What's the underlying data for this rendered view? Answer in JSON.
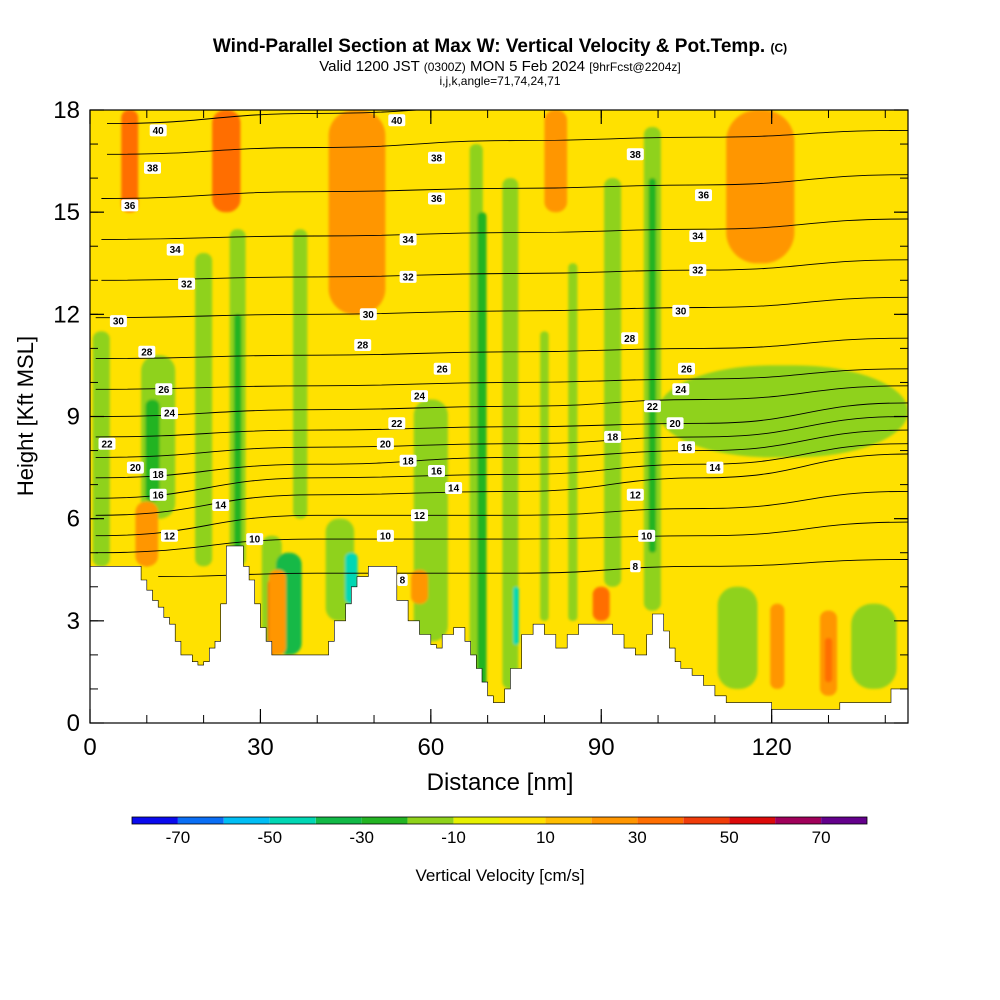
{
  "header": {
    "title_main": "Wind-Parallel Section at Max W: Vertical Velocity & Pot.Temp.",
    "title_mark": "(C)",
    "valid_prefix": "Valid 1200 JST",
    "valid_zulu": "(0300Z)",
    "valid_date": "MON 5 Feb 2024",
    "valid_fcst": "[9hrFcst@2204z]",
    "indices": "i,j,k,angle=71,74,24,71"
  },
  "chart_data": {
    "type": "heatmap",
    "xlabel": "Distance [nm]",
    "ylabel": "Height [Kft MSL]",
    "xlim": [
      0,
      144
    ],
    "ylim": [
      0,
      18
    ],
    "x_ticks": [
      0,
      30,
      60,
      90,
      120
    ],
    "y_ticks": [
      0,
      3,
      6,
      9,
      12,
      15,
      18
    ],
    "colorbar": {
      "label": "Vertical Velocity [cm/s]",
      "tick_labels": [
        "-70",
        "-50",
        "-30",
        "-10",
        "10",
        "30",
        "50",
        "70"
      ],
      "tick_values": [
        -70,
        -50,
        -30,
        -10,
        10,
        30,
        50,
        70
      ],
      "bins": [
        -80,
        -70,
        -60,
        -50,
        -40,
        -30,
        -20,
        -10,
        0,
        10,
        20,
        30,
        40,
        50,
        60,
        70,
        80
      ],
      "colors": [
        "#0a0aee",
        "#0a6ef5",
        "#00bef5",
        "#00d7b4",
        "#12b947",
        "#23b423",
        "#8fd21a",
        "#e6f000",
        "#ffe100",
        "#ffbe00",
        "#ff9600",
        "#ff6e00",
        "#f03c0a",
        "#dc0a0a",
        "#a0005a",
        "#64008c"
      ]
    },
    "terrain_kft": [
      [
        0,
        4.6
      ],
      [
        8,
        4.6
      ],
      [
        9,
        4.2
      ],
      [
        10,
        3.9
      ],
      [
        11,
        3.6
      ],
      [
        12,
        3.4
      ],
      [
        13,
        3.1
      ],
      [
        14,
        2.9
      ],
      [
        15,
        2.4
      ],
      [
        16,
        2.0
      ],
      [
        17,
        2.0
      ],
      [
        18,
        1.8
      ],
      [
        19,
        1.7
      ],
      [
        20,
        1.8
      ],
      [
        21,
        2.2
      ],
      [
        22,
        2.4
      ],
      [
        23,
        3.5
      ],
      [
        24,
        5.2
      ],
      [
        26,
        5.2
      ],
      [
        27,
        4.6
      ],
      [
        28,
        4.2
      ],
      [
        29,
        3.5
      ],
      [
        30,
        2.8
      ],
      [
        31,
        2.4
      ],
      [
        32,
        2.0
      ],
      [
        41,
        2.0
      ],
      [
        42,
        2.4
      ],
      [
        43,
        3.0
      ],
      [
        45,
        3.5
      ],
      [
        46,
        4.0
      ],
      [
        47,
        4.3
      ],
      [
        49,
        4.6
      ],
      [
        52,
        4.6
      ],
      [
        54,
        3.6
      ],
      [
        56,
        3.0
      ],
      [
        58,
        2.6
      ],
      [
        60,
        2.3
      ],
      [
        61,
        2.2
      ],
      [
        62,
        2.6
      ],
      [
        64,
        2.8
      ],
      [
        66,
        2.4
      ],
      [
        67,
        2.0
      ],
      [
        68,
        1.6
      ],
      [
        69,
        1.2
      ],
      [
        70,
        0.8
      ],
      [
        71,
        0.6
      ],
      [
        72,
        0.6
      ],
      [
        73,
        1.0
      ],
      [
        74,
        1.6
      ],
      [
        76,
        2.6
      ],
      [
        78,
        2.9
      ],
      [
        80,
        2.6
      ],
      [
        82,
        2.2
      ],
      [
        84,
        2.6
      ],
      [
        86,
        2.9
      ],
      [
        90,
        2.9
      ],
      [
        92,
        2.6
      ],
      [
        94,
        2.2
      ],
      [
        96,
        2.0
      ],
      [
        98,
        2.6
      ],
      [
        99,
        3.2
      ],
      [
        100,
        3.2
      ],
      [
        101,
        2.7
      ],
      [
        102,
        2.2
      ],
      [
        103,
        1.8
      ],
      [
        104,
        1.6
      ],
      [
        106,
        1.4
      ],
      [
        108,
        1.1
      ],
      [
        110,
        0.8
      ],
      [
        112,
        0.6
      ],
      [
        114,
        0.6
      ],
      [
        118,
        0.6
      ],
      [
        120,
        0.4
      ],
      [
        126,
        0.4
      ],
      [
        131,
        0.4
      ],
      [
        132,
        0.6
      ],
      [
        140,
        0.6
      ],
      [
        141,
        1.0
      ],
      [
        144,
        1.0
      ]
    ],
    "theta_contours_K": [
      {
        "label": "40",
        "points": [
          [
            3,
            17.6
          ],
          [
            40,
            17.9
          ],
          [
            75,
            18.1
          ],
          [
            110,
            18.1
          ],
          [
            144,
            18.1
          ]
        ]
      },
      {
        "label": "38",
        "points": [
          [
            3,
            16.7
          ],
          [
            40,
            16.9
          ],
          [
            75,
            17.1
          ],
          [
            108,
            17.2
          ],
          [
            144,
            17.4
          ]
        ]
      },
      {
        "label": "36",
        "points": [
          [
            2,
            15.4
          ],
          [
            40,
            15.6
          ],
          [
            75,
            15.7
          ],
          [
            108,
            15.8
          ],
          [
            144,
            16.1
          ]
        ]
      },
      {
        "label": "34",
        "points": [
          [
            2,
            14.2
          ],
          [
            40,
            14.3
          ],
          [
            75,
            14.4
          ],
          [
            108,
            14.5
          ],
          [
            144,
            14.8
          ]
        ]
      },
      {
        "label": "32",
        "points": [
          [
            2,
            13.0
          ],
          [
            40,
            13.1
          ],
          [
            75,
            13.2
          ],
          [
            108,
            13.3
          ],
          [
            144,
            13.6
          ]
        ]
      },
      {
        "label": "30",
        "points": [
          [
            1,
            11.9
          ],
          [
            40,
            12.0
          ],
          [
            75,
            12.1
          ],
          [
            108,
            12.2
          ],
          [
            144,
            12.5
          ]
        ]
      },
      {
        "label": "28",
        "points": [
          [
            1,
            10.7
          ],
          [
            40,
            10.8
          ],
          [
            75,
            10.9
          ],
          [
            108,
            11.0
          ],
          [
            144,
            11.3
          ]
        ]
      },
      {
        "label": "26",
        "points": [
          [
            1,
            9.8
          ],
          [
            40,
            9.9
          ],
          [
            75,
            10.0
          ],
          [
            108,
            10.1
          ],
          [
            144,
            10.4
          ]
        ]
      },
      {
        "label": "24",
        "points": [
          [
            1,
            9.0
          ],
          [
            40,
            9.2
          ],
          [
            75,
            9.3
          ],
          [
            108,
            9.5
          ],
          [
            144,
            9.9
          ]
        ]
      },
      {
        "label": "22",
        "points": [
          [
            1,
            8.4
          ],
          [
            40,
            8.6
          ],
          [
            75,
            8.7
          ],
          [
            108,
            8.8
          ],
          [
            144,
            9.4
          ]
        ]
      },
      {
        "label": "20",
        "points": [
          [
            1,
            7.8
          ],
          [
            40,
            8.1
          ],
          [
            75,
            8.2
          ],
          [
            108,
            8.4
          ],
          [
            144,
            9.0
          ]
        ]
      },
      {
        "label": "18",
        "points": [
          [
            1,
            7.2
          ],
          [
            40,
            7.6
          ],
          [
            75,
            7.8
          ],
          [
            108,
            8.0
          ],
          [
            144,
            8.6
          ]
        ]
      },
      {
        "label": "16",
        "points": [
          [
            1,
            6.6
          ],
          [
            40,
            7.2
          ],
          [
            75,
            7.3
          ],
          [
            108,
            7.6
          ],
          [
            144,
            8.2
          ]
        ]
      },
      {
        "label": "14",
        "points": [
          [
            1,
            6.1
          ],
          [
            40,
            6.7
          ],
          [
            75,
            6.8
          ],
          [
            108,
            7.2
          ],
          [
            144,
            7.9
          ]
        ]
      },
      {
        "label": "12",
        "points": [
          [
            1,
            5.5
          ],
          [
            40,
            6.1
          ],
          [
            75,
            6.1
          ],
          [
            108,
            6.3
          ],
          [
            144,
            6.8
          ]
        ]
      },
      {
        "label": "10",
        "points": [
          [
            1,
            5.0
          ],
          [
            40,
            5.4
          ],
          [
            75,
            5.4
          ],
          [
            108,
            5.5
          ],
          [
            144,
            5.9
          ]
        ]
      },
      {
        "label": "8",
        "points": [
          [
            12,
            4.3
          ],
          [
            40,
            4.4
          ],
          [
            75,
            4.4
          ],
          [
            108,
            4.6
          ],
          [
            144,
            4.8
          ]
        ]
      }
    ],
    "contour_labels": [
      {
        "text": "40",
        "x": 12,
        "y": 17.4
      },
      {
        "text": "40",
        "x": 54,
        "y": 17.7
      },
      {
        "text": "38",
        "x": 11,
        "y": 16.3
      },
      {
        "text": "38",
        "x": 61,
        "y": 16.6
      },
      {
        "text": "38",
        "x": 96,
        "y": 16.7
      },
      {
        "text": "36",
        "x": 7,
        "y": 15.2
      },
      {
        "text": "36",
        "x": 61,
        "y": 15.4
      },
      {
        "text": "36",
        "x": 108,
        "y": 15.5
      },
      {
        "text": "34",
        "x": 15,
        "y": 13.9
      },
      {
        "text": "34",
        "x": 56,
        "y": 14.2
      },
      {
        "text": "34",
        "x": 107,
        "y": 14.3
      },
      {
        "text": "32",
        "x": 17,
        "y": 12.9
      },
      {
        "text": "32",
        "x": 56,
        "y": 13.1
      },
      {
        "text": "32",
        "x": 107,
        "y": 13.3
      },
      {
        "text": "30",
        "x": 5,
        "y": 11.8
      },
      {
        "text": "30",
        "x": 49,
        "y": 12.0
      },
      {
        "text": "30",
        "x": 104,
        "y": 12.1
      },
      {
        "text": "28",
        "x": 10,
        "y": 10.9
      },
      {
        "text": "28",
        "x": 48,
        "y": 11.1
      },
      {
        "text": "28",
        "x": 95,
        "y": 11.3
      },
      {
        "text": "26",
        "x": 13,
        "y": 9.8
      },
      {
        "text": "26",
        "x": 62,
        "y": 10.4
      },
      {
        "text": "26",
        "x": 105,
        "y": 10.4
      },
      {
        "text": "24",
        "x": 14,
        "y": 9.1
      },
      {
        "text": "24",
        "x": 58,
        "y": 9.6
      },
      {
        "text": "24",
        "x": 104,
        "y": 9.8
      },
      {
        "text": "22",
        "x": 3,
        "y": 8.2
      },
      {
        "text": "22",
        "x": 54,
        "y": 8.8
      },
      {
        "text": "22",
        "x": 99,
        "y": 9.3
      },
      {
        "text": "20",
        "x": 8,
        "y": 7.5
      },
      {
        "text": "20",
        "x": 52,
        "y": 8.2
      },
      {
        "text": "20",
        "x": 103,
        "y": 8.8
      },
      {
        "text": "18",
        "x": 12,
        "y": 7.3
      },
      {
        "text": "18",
        "x": 56,
        "y": 7.7
      },
      {
        "text": "18",
        "x": 92,
        "y": 8.4
      },
      {
        "text": "16",
        "x": 12,
        "y": 6.7
      },
      {
        "text": "16",
        "x": 61,
        "y": 7.4
      },
      {
        "text": "16",
        "x": 105,
        "y": 8.1
      },
      {
        "text": "14",
        "x": 23,
        "y": 6.4
      },
      {
        "text": "14",
        "x": 64,
        "y": 6.9
      },
      {
        "text": "14",
        "x": 110,
        "y": 7.5
      },
      {
        "text": "12",
        "x": 14,
        "y": 5.5
      },
      {
        "text": "12",
        "x": 58,
        "y": 6.1
      },
      {
        "text": "12",
        "x": 96,
        "y": 6.7
      },
      {
        "text": "10",
        "x": 29,
        "y": 5.4
      },
      {
        "text": "10",
        "x": 52,
        "y": 5.5
      },
      {
        "text": "10",
        "x": 98,
        "y": 5.5
      },
      {
        "text": "8",
        "x": 55,
        "y": 4.2
      },
      {
        "text": "8",
        "x": 96,
        "y": 4.6
      }
    ],
    "velocity_features": [
      {
        "x": 2,
        "w": 3,
        "y0": 4.6,
        "y1": 11.5,
        "v": -15
      },
      {
        "x": 12,
        "w": 6,
        "y0": 6.0,
        "y1": 10.8,
        "v": -15
      },
      {
        "x": 11,
        "w": 2.5,
        "y0": 6.5,
        "y1": 9.5,
        "v": -22
      },
      {
        "x": 20,
        "w": 3,
        "y0": 4.6,
        "y1": 13.8,
        "v": -15
      },
      {
        "x": 26,
        "w": 2.8,
        "y0": 4.6,
        "y1": 14.5,
        "v": -15
      },
      {
        "x": 26,
        "w": 1.3,
        "y0": 5.0,
        "y1": 12.0,
        "v": -25
      },
      {
        "x": 37,
        "w": 2.5,
        "y0": 6.0,
        "y1": 14.5,
        "v": -15
      },
      {
        "x": 32,
        "w": 3.5,
        "y0": 2.0,
        "y1": 5.5,
        "v": -15
      },
      {
        "x": 35,
        "w": 4.5,
        "y0": 2.0,
        "y1": 5.0,
        "v": -35
      },
      {
        "x": 44,
        "w": 5,
        "y0": 3.0,
        "y1": 6.0,
        "v": -20
      },
      {
        "x": 46,
        "w": 2.2,
        "y0": 3.5,
        "y1": 5.0,
        "v": -50
      },
      {
        "x": 60,
        "w": 6,
        "y0": 2.4,
        "y1": 9.5,
        "v": -15
      },
      {
        "x": 68,
        "w": 2.3,
        "y0": 0.8,
        "y1": 17.0,
        "v": -15
      },
      {
        "x": 69,
        "w": 1.6,
        "y0": 1.0,
        "y1": 15.0,
        "v": -25
      },
      {
        "x": 74,
        "w": 2.8,
        "y0": 1.0,
        "y1": 16.0,
        "v": -15
      },
      {
        "x": 75,
        "w": 1.0,
        "y0": 2.3,
        "y1": 4.0,
        "v": -50
      },
      {
        "x": 80,
        "w": 1.5,
        "y0": 3.0,
        "y1": 11.5,
        "v": -15
      },
      {
        "x": 85,
        "w": 1.6,
        "y0": 3.0,
        "y1": 13.5,
        "v": -15
      },
      {
        "x": 92,
        "w": 3,
        "y0": 4.0,
        "y1": 16.0,
        "v": -15
      },
      {
        "x": 99,
        "w": 3,
        "y0": 3.3,
        "y1": 17.5,
        "v": -15
      },
      {
        "x": 99,
        "w": 1.3,
        "y0": 5.0,
        "y1": 16.0,
        "v": -25
      },
      {
        "x": 122,
        "w": 44,
        "y0": 7.8,
        "y1": 10.5,
        "v": -15
      },
      {
        "x": 114,
        "w": 7,
        "y0": 1.0,
        "y1": 4.0,
        "v": -15
      },
      {
        "x": 138,
        "w": 8,
        "y0": 1.0,
        "y1": 3.5,
        "v": -15
      },
      {
        "x": 7,
        "w": 3,
        "y0": 15.0,
        "y1": 18.0,
        "v": 35
      },
      {
        "x": 24,
        "w": 5,
        "y0": 15.0,
        "y1": 18.0,
        "v": 35
      },
      {
        "x": 47,
        "w": 10,
        "y0": 12.0,
        "y1": 18.0,
        "v": 25
      },
      {
        "x": 82,
        "w": 4,
        "y0": 15.0,
        "y1": 18.0,
        "v": 25
      },
      {
        "x": 118,
        "w": 12,
        "y0": 13.5,
        "y1": 18.0,
        "v": 25
      },
      {
        "x": 10,
        "w": 1.4,
        "y0": 4.6,
        "y1": 5.6,
        "v": 55
      },
      {
        "x": 10,
        "w": 4,
        "y0": 4.6,
        "y1": 6.5,
        "v": 25
      },
      {
        "x": 32,
        "w": 1.4,
        "y0": 2.0,
        "y1": 4.2,
        "v": 45
      },
      {
        "x": 33,
        "w": 3,
        "y0": 2.0,
        "y1": 4.5,
        "v": 25
      },
      {
        "x": 58,
        "w": 3,
        "y0": 3.5,
        "y1": 4.5,
        "v": 25
      },
      {
        "x": 90,
        "w": 3,
        "y0": 3.0,
        "y1": 4.0,
        "v": 35
      },
      {
        "x": 121,
        "w": 2.5,
        "y0": 1.0,
        "y1": 3.5,
        "v": 25
      },
      {
        "x": 130,
        "w": 3,
        "y0": 0.8,
        "y1": 3.3,
        "v": 25
      },
      {
        "x": 130,
        "w": 1.3,
        "y0": 1.2,
        "y1": 2.5,
        "v": 35
      }
    ]
  }
}
